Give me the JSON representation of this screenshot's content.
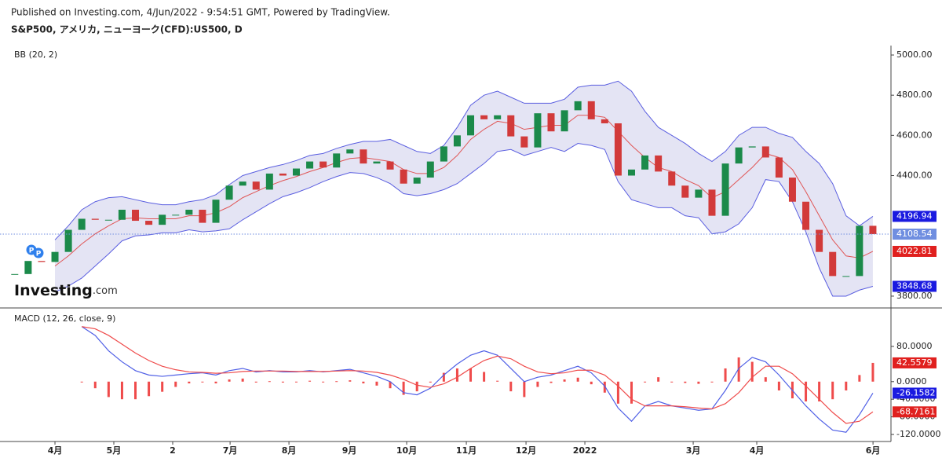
{
  "header": {
    "published": "Published on Investing.com, 4/Jun/2022 - 9:54:51 GMT, Powered by TradingView.",
    "symbol": "S&P500, アメリカ, ニューヨーク(CFD):US500, D"
  },
  "watermark": {
    "name": "Investing",
    "suffix": ".com"
  },
  "markers": [
    "P",
    "P"
  ],
  "chart_data": [
    {
      "type": "candlestick",
      "label": "BB (20, 2)",
      "x": [
        -3,
        -2,
        -1,
        0,
        1,
        2,
        3,
        4,
        5,
        6,
        7,
        8,
        9,
        10,
        11,
        12,
        13,
        14,
        15,
        16,
        17,
        18,
        19,
        20,
        21,
        22,
        23,
        24,
        25,
        26,
        27,
        28,
        29,
        30,
        31,
        32,
        33,
        34,
        35,
        36,
        37,
        38,
        39,
        40,
        41,
        42,
        43,
        44,
        45,
        46,
        47,
        48,
        49,
        50,
        51,
        52,
        53,
        54,
        55,
        56,
        57,
        58,
        59,
        60,
        61
      ],
      "xlim": [
        -4.1,
        62.35
      ],
      "close": [
        3910,
        3975,
        3970,
        4020,
        4130,
        4185,
        4180,
        4180,
        4230,
        4175,
        4155,
        4205,
        4205,
        4230,
        4165,
        4280,
        4350,
        4370,
        4330,
        4410,
        4400,
        4435,
        4470,
        4440,
        4510,
        4530,
        4460,
        4470,
        4430,
        4360,
        4390,
        4470,
        4545,
        4600,
        4700,
        4680,
        4700,
        4595,
        4540,
        4710,
        4620,
        4725,
        4770,
        4680,
        4660,
        4400,
        4430,
        4500,
        4420,
        4350,
        4290,
        4330,
        4200,
        4460,
        4540,
        4545,
        4490,
        4390,
        4270,
        4130,
        4020,
        3900,
        3900,
        4150,
        4108.54
      ],
      "upper": [
        null,
        null,
        null,
        4080,
        4150,
        4230,
        4270,
        4290,
        4295,
        4280,
        4265,
        4255,
        4255,
        4270,
        4280,
        4305,
        4355,
        4400,
        4420,
        4440,
        4455,
        4475,
        4500,
        4510,
        4535,
        4555,
        4570,
        4570,
        4580,
        4550,
        4520,
        4510,
        4550,
        4640,
        4750,
        4800,
        4820,
        4790,
        4760,
        4760,
        4760,
        4780,
        4840,
        4850,
        4850,
        4870,
        4820,
        4720,
        4640,
        4600,
        4560,
        4510,
        4470,
        4520,
        4600,
        4640,
        4640,
        4610,
        4590,
        4520,
        4460,
        4360,
        4200,
        4150,
        4196.94
      ],
      "middle": [
        null,
        null,
        null,
        3950,
        4000,
        4060,
        4110,
        4150,
        4185,
        4190,
        4185,
        4185,
        4185,
        4200,
        4200,
        4215,
        4245,
        4290,
        4320,
        4350,
        4375,
        4395,
        4420,
        4440,
        4465,
        4485,
        4490,
        4480,
        4470,
        4430,
        4410,
        4410,
        4440,
        4500,
        4580,
        4630,
        4670,
        4660,
        4630,
        4640,
        4650,
        4650,
        4700,
        4700,
        4690,
        4620,
        4550,
        4490,
        4440,
        4420,
        4380,
        4350,
        4290,
        4320,
        4380,
        4440,
        4510,
        4490,
        4430,
        4320,
        4200,
        4080,
        4000,
        3990,
        4022.81
      ],
      "lower": [
        null,
        null,
        null,
        3820,
        3850,
        3890,
        3950,
        4010,
        4075,
        4100,
        4105,
        4115,
        4115,
        4130,
        4120,
        4125,
        4135,
        4180,
        4220,
        4260,
        4295,
        4315,
        4340,
        4370,
        4395,
        4415,
        4410,
        4390,
        4360,
        4310,
        4300,
        4310,
        4330,
        4360,
        4410,
        4460,
        4520,
        4530,
        4500,
        4520,
        4540,
        4520,
        4560,
        4550,
        4530,
        4370,
        4280,
        4260,
        4240,
        4240,
        4200,
        4190,
        4110,
        4120,
        4160,
        4240,
        4380,
        4370,
        4270,
        4120,
        3940,
        3800,
        3800,
        3830,
        3848.68
      ],
      "colors": {
        "up": "#1b8a4a",
        "down": "#d23a3a",
        "band": "#5a5ee0",
        "middle": "#e05555",
        "fill": "#e4e4f4",
        "last": "#6f8ee0",
        "band_tag": "#1a1ae0",
        "middle_tag": "#e0201e"
      },
      "ylim": [
        3749,
        5047
      ],
      "yticks": [
        {
          "value": 3800,
          "label": "3800.00"
        },
        {
          "value": 4400,
          "label": "4400.00"
        },
        {
          "value": 4600,
          "label": "4600.00"
        },
        {
          "value": 4800,
          "label": "4800.00"
        },
        {
          "value": 5000,
          "label": "5000.00"
        }
      ]
    },
    {
      "type": "macd",
      "label": "MACD (12, 26, close, 9)",
      "macd": [
        null,
        null,
        null,
        null,
        null,
        125,
        105,
        70,
        45,
        25,
        15,
        12,
        15,
        18,
        20,
        15,
        25,
        30,
        22,
        25,
        22,
        22,
        25,
        22,
        25,
        28,
        20,
        12,
        0,
        -25,
        -30,
        -15,
        15,
        40,
        60,
        70,
        60,
        30,
        0,
        10,
        15,
        25,
        35,
        20,
        -10,
        -60,
        -90,
        -55,
        -45,
        -55,
        -60,
        -65,
        -62,
        -20,
        30,
        55,
        45,
        15,
        -20,
        -55,
        -85,
        -110,
        -115,
        -75,
        -26.1582
      ],
      "signal": [
        null,
        null,
        null,
        null,
        null,
        125,
        120,
        105,
        85,
        65,
        48,
        35,
        27,
        22,
        21,
        19,
        20,
        23,
        24,
        24,
        24,
        23,
        23,
        23,
        24,
        25,
        24,
        21,
        15,
        5,
        -8,
        -13,
        -5,
        10,
        30,
        48,
        58,
        52,
        35,
        22,
        18,
        20,
        26,
        26,
        15,
        -10,
        -40,
        -55,
        -55,
        -55,
        -57,
        -60,
        -62,
        -50,
        -25,
        10,
        35,
        35,
        18,
        -10,
        -40,
        -70,
        -95,
        -90,
        -68.7161
      ],
      "histogram": [
        null,
        null,
        null,
        null,
        null,
        0,
        -15,
        -35,
        -40,
        -40,
        -33,
        -23,
        -12,
        -4,
        -1,
        -4,
        5,
        7,
        -2,
        1,
        -2,
        -1,
        2,
        -1,
        1,
        3,
        -4,
        -9,
        -15,
        -30,
        -22,
        -2,
        20,
        30,
        30,
        22,
        2,
        -22,
        -35,
        -12,
        -3,
        5,
        9,
        -6,
        -25,
        -50,
        -50,
        0,
        10,
        0,
        -3,
        -5,
        0,
        30,
        55,
        45,
        10,
        -20,
        -38,
        -45,
        -45,
        -40,
        -20,
        15,
        42.5579
      ],
      "colors": {
        "macd": "#4f5fe6",
        "signal": "#ef4b4b",
        "histogram": "#ef4b4b",
        "macd_tag": "#1a1ae0",
        "signal_tag": "#e0201e"
      },
      "ylim": [
        -136,
        162
      ],
      "yticks": [
        {
          "value": -120,
          "label": "-120.0000"
        },
        {
          "value": -80,
          "label": "-80.0000"
        },
        {
          "value": -40,
          "label": "-40.0000"
        },
        {
          "value": 0,
          "label": "0.0000"
        },
        {
          "value": 80,
          "label": "80.0000"
        }
      ],
      "xticks": [
        {
          "value": 0,
          "label": "4月"
        },
        {
          "value": 4.39,
          "label": "5月"
        },
        {
          "value": 8.78,
          "label": "2"
        },
        {
          "value": 13.06,
          "label": "7月"
        },
        {
          "value": 17.45,
          "label": "8月"
        },
        {
          "value": 21.96,
          "label": "9月"
        },
        {
          "value": 26.23,
          "label": "10月"
        },
        {
          "value": 30.68,
          "label": "11月"
        },
        {
          "value": 35.13,
          "label": "12月"
        },
        {
          "value": 39.52,
          "label": "2022"
        },
        {
          "value": 47.6,
          "label": "3月"
        },
        {
          "value": 52.34,
          "label": "4月"
        },
        {
          "value": 61.01,
          "label": "6月"
        }
      ]
    }
  ]
}
